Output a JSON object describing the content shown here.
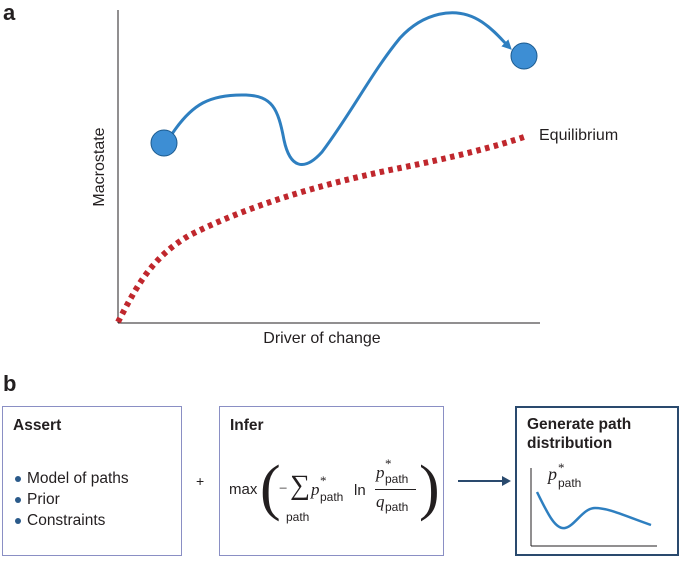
{
  "panel_a": {
    "label": "a",
    "y_axis_label": "Macrostate",
    "x_axis_label": "Driver of change",
    "equilibrium_label": "Equilibrium"
  },
  "panel_b": {
    "label": "b",
    "assert": {
      "title": "Assert",
      "items": [
        "Model of paths",
        "Prior",
        "Constraints"
      ]
    },
    "plus": "+",
    "infer": {
      "title": "Infer",
      "max": "max",
      "minus": "−",
      "sum": "∑",
      "sum_sub": "path",
      "p": "p",
      "star": "*",
      "path_sub": "path",
      "ln": "ln",
      "q": "q"
    },
    "generate": {
      "title": "Generate path distribution",
      "p": "p",
      "star": "*",
      "path_sub": "path"
    }
  },
  "colors": {
    "path_blue": "#2e7fc0",
    "node_fill": "#3d8ed4",
    "equilibrium_red": "#c0272d",
    "box_border": "#8a8fc4",
    "generate_border": "#2a4a6e",
    "arrow": "#2a4a6e"
  }
}
